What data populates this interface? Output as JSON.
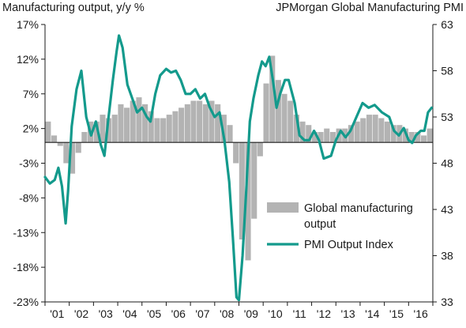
{
  "header": {
    "left_title": "Manufacturing output, y/y %",
    "right_title": "JPMorgan Global Manufacturing PMI"
  },
  "chart_data": {
    "type": "bar+line",
    "title_left": "Manufacturing output, y/y %",
    "title_right": "JPMorgan Global Manufacturing PMI",
    "left_axis": {
      "ticks": [
        17,
        12,
        7,
        2,
        -3,
        -8,
        -13,
        -18,
        -23
      ],
      "tick_labels": [
        "17%",
        "12%",
        "7%",
        "2%",
        "-3%",
        "-8%",
        "-13%",
        "-18%",
        "-23%"
      ],
      "ylim": [
        -23,
        17
      ]
    },
    "right_axis": {
      "ticks": [
        63,
        58,
        53,
        48,
        43,
        38,
        33
      ],
      "tick_labels": [
        "63",
        "58",
        "53",
        "48",
        "43",
        "38",
        "33"
      ],
      "ylim": [
        33,
        63
      ]
    },
    "x_axis": {
      "tick_labels": [
        "'01",
        "'02",
        "'03",
        "'04",
        "'05",
        "'06",
        "'07",
        "'08",
        "'09",
        "'10",
        "'11",
        "'12",
        "'13",
        "'14",
        "'15",
        "'16"
      ],
      "xlim": [
        2001.0,
        2017.0
      ]
    },
    "legend": {
      "position": "lower-right",
      "entries": [
        "Global manufacturing output",
        "PMI Output Index"
      ]
    },
    "colors": {
      "bars": "#b3b3b3",
      "line": "#139a8c",
      "axis": "#1a1a1a",
      "gridline": "#1a1a1a"
    },
    "series": [
      {
        "name": "Global manufacturing output",
        "axis": "left",
        "kind": "bar",
        "step_years": 0.25,
        "x_start": 2001.0,
        "values": [
          3.0,
          1.0,
          -0.5,
          -3.0,
          -4.5,
          -1.5,
          1.5,
          3.0,
          3.0,
          4.0,
          3.5,
          4.0,
          5.5,
          5.0,
          6.0,
          6.5,
          5.5,
          4.5,
          3.5,
          3.5,
          4.0,
          4.5,
          5.0,
          5.5,
          6.0,
          6.0,
          5.5,
          6.0,
          5.5,
          4.0,
          2.5,
          -3.0,
          -14.0,
          -17.0,
          -11.0,
          -2.0,
          8.5,
          12.5,
          9.0,
          7.0,
          6.0,
          4.0,
          3.0,
          2.5,
          1.5,
          1.5,
          2.0,
          1.5,
          2.0,
          2.0,
          2.5,
          3.0,
          3.5,
          4.0,
          4.0,
          3.5,
          3.0,
          2.5,
          2.5,
          2.0,
          1.5,
          1.5,
          1.0,
          2.0
        ]
      },
      {
        "name": "PMI Output Index",
        "axis": "right",
        "kind": "line",
        "points": [
          [
            2001.0,
            46.5
          ],
          [
            2001.2,
            45.8
          ],
          [
            2001.4,
            46.2
          ],
          [
            2001.55,
            47.5
          ],
          [
            2001.7,
            45.5
          ],
          [
            2001.85,
            41.5
          ],
          [
            2001.95,
            45.0
          ],
          [
            2002.1,
            52.0
          ],
          [
            2002.3,
            56.0
          ],
          [
            2002.5,
            58.0
          ],
          [
            2002.7,
            53.0
          ],
          [
            2002.9,
            51.0
          ],
          [
            2003.1,
            52.5
          ],
          [
            2003.3,
            50.0
          ],
          [
            2003.45,
            48.8
          ],
          [
            2003.6,
            52.5
          ],
          [
            2003.8,
            57.0
          ],
          [
            2003.95,
            60.0
          ],
          [
            2004.05,
            61.8
          ],
          [
            2004.2,
            60.5
          ],
          [
            2004.4,
            56.5
          ],
          [
            2004.6,
            55.0
          ],
          [
            2004.8,
            53.5
          ],
          [
            2005.0,
            54.0
          ],
          [
            2005.2,
            53.0
          ],
          [
            2005.35,
            52.5
          ],
          [
            2005.55,
            55.5
          ],
          [
            2005.75,
            57.5
          ],
          [
            2006.0,
            58.2
          ],
          [
            2006.2,
            57.8
          ],
          [
            2006.4,
            58.0
          ],
          [
            2006.6,
            57.0
          ],
          [
            2006.8,
            55.5
          ],
          [
            2007.0,
            55.5
          ],
          [
            2007.2,
            56.0
          ],
          [
            2007.4,
            55.0
          ],
          [
            2007.6,
            55.5
          ],
          [
            2007.8,
            54.0
          ],
          [
            2008.0,
            53.0
          ],
          [
            2008.2,
            53.5
          ],
          [
            2008.4,
            50.5
          ],
          [
            2008.6,
            46.0
          ],
          [
            2008.75,
            40.0
          ],
          [
            2008.9,
            33.5
          ],
          [
            2009.0,
            33.2
          ],
          [
            2009.15,
            38.0
          ],
          [
            2009.3,
            45.0
          ],
          [
            2009.45,
            52.5
          ],
          [
            2009.6,
            55.0
          ],
          [
            2009.8,
            57.5
          ],
          [
            2009.95,
            59.0
          ],
          [
            2010.1,
            58.5
          ],
          [
            2010.25,
            59.5
          ],
          [
            2010.4,
            57.0
          ],
          [
            2010.55,
            54.0
          ],
          [
            2010.7,
            55.5
          ],
          [
            2010.9,
            57.0
          ],
          [
            2011.05,
            57.0
          ],
          [
            2011.3,
            54.5
          ],
          [
            2011.5,
            51.0
          ],
          [
            2011.7,
            50.5
          ],
          [
            2011.9,
            50.5
          ],
          [
            2012.1,
            51.5
          ],
          [
            2012.3,
            50.5
          ],
          [
            2012.5,
            48.5
          ],
          [
            2012.8,
            48.8
          ],
          [
            2013.0,
            50.5
          ],
          [
            2013.2,
            51.5
          ],
          [
            2013.4,
            50.8
          ],
          [
            2013.6,
            51.5
          ],
          [
            2013.85,
            53.0
          ],
          [
            2014.1,
            54.5
          ],
          [
            2014.35,
            54.0
          ],
          [
            2014.6,
            54.3
          ],
          [
            2014.9,
            53.5
          ],
          [
            2015.2,
            53.0
          ],
          [
            2015.4,
            51.5
          ],
          [
            2015.6,
            51.0
          ],
          [
            2015.8,
            51.8
          ],
          [
            2016.0,
            50.5
          ],
          [
            2016.15,
            50.2
          ],
          [
            2016.3,
            51.0
          ],
          [
            2016.5,
            51.5
          ],
          [
            2016.65,
            51.5
          ],
          [
            2016.8,
            53.5
          ],
          [
            2016.95,
            54.0
          ]
        ]
      }
    ]
  }
}
